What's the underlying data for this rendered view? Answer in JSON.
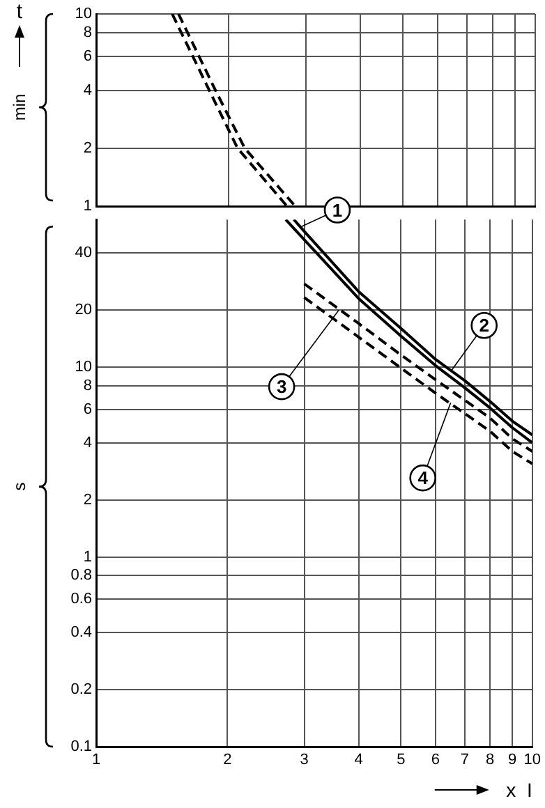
{
  "chart_data": [
    {
      "type": "line",
      "ylabel": "t",
      "log": "xy",
      "grid": true,
      "marker": "none",
      "tick_labels": "y",
      "xlim": [
        1,
        10
      ],
      "ylim": [
        1,
        10
      ],
      "xticks": [
        1,
        2,
        3,
        4,
        5,
        6,
        7,
        8,
        9,
        10
      ],
      "yticks": [
        1,
        2,
        4,
        6,
        8,
        10
      ],
      "annotations": [
        "min"
      ],
      "series": [
        {
          "color": "#000000",
          "line_style": "dashed",
          "x": [
            1.54,
            1.87,
            2.18,
            2.84
          ],
          "values": [
            10,
            4,
            2,
            1
          ]
        },
        {
          "color": "#000000",
          "line_style": "dashed",
          "x": [
            1.49,
            1.81,
            2.1,
            2.72
          ],
          "values": [
            10,
            4,
            2,
            1
          ]
        }
      ]
    },
    {
      "type": "line",
      "xlabel": "x I",
      "log": "xy",
      "grid": true,
      "marker": "none",
      "xlim": [
        1,
        10
      ],
      "ylim": [
        0.1,
        60
      ],
      "xticks": [
        1,
        2,
        3,
        4,
        5,
        6,
        7,
        8,
        9,
        10
      ],
      "yticks": [
        0.1,
        0.2,
        0.4,
        0.6,
        0.8,
        1,
        2,
        4,
        6,
        8,
        10,
        20,
        40
      ],
      "annotations": [
        {
          "text": "1",
          "x": 2.95,
          "y": 55
        },
        {
          "text": "2",
          "x": 6.5,
          "y": 9.5
        },
        {
          "text": "3",
          "x": 3.6,
          "y": 20
        },
        {
          "text": "4",
          "x": 6.5,
          "y": 6.5
        },
        "s"
      ],
      "series": [
        {
          "color": "#000000",
          "line_style": "solid",
          "x": [
            2.84,
            3,
            4,
            5,
            6,
            7,
            8,
            9,
            10
          ],
          "values": [
            60,
            52,
            25,
            16,
            11,
            8.5,
            6.6,
            5.2,
            4.4
          ]
        },
        {
          "color": "#000000",
          "line_style": "solid",
          "x": [
            2.72,
            3,
            4,
            5,
            6,
            7,
            8,
            9,
            10
          ],
          "values": [
            60,
            47,
            23,
            14.6,
            10.2,
            7.8,
            6.1,
            4.8,
            4.0
          ]
        },
        {
          "color": "#000000",
          "line_style": "dashed",
          "x": [
            3,
            4,
            5,
            6,
            7,
            8,
            9,
            10
          ],
          "values": [
            27.5,
            17,
            11.6,
            8.6,
            6.7,
            5.4,
            4.2,
            3.6
          ]
        },
        {
          "color": "#000000",
          "line_style": "dashed",
          "x": [
            3,
            4,
            5,
            6,
            7,
            8,
            9,
            10
          ],
          "values": [
            23.3,
            14.4,
            9.9,
            7.3,
            5.7,
            4.6,
            3.6,
            3.1
          ]
        }
      ]
    }
  ]
}
